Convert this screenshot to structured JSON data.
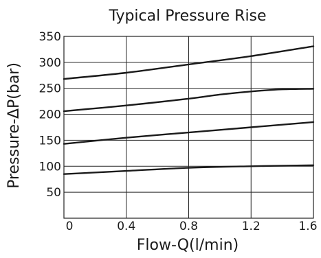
{
  "chart_data": {
    "type": "line",
    "title": "Typical Pressure Rise",
    "xlabel": "Flow-Q(l/min)",
    "ylabel": "Pressure-ΔP(bar)",
    "xlim": [
      0,
      1.6
    ],
    "ylim": [
      0,
      350
    ],
    "x_ticks": [
      0,
      0.4,
      0.8,
      1.2,
      1.6
    ],
    "x_tick_labels": [
      "0",
      "0.4",
      "0.8",
      "1.2",
      "1.6"
    ],
    "y_ticks": [
      50,
      100,
      150,
      200,
      250,
      300,
      350
    ],
    "y_tick_labels": [
      "50",
      "100",
      "150",
      "200",
      "250",
      "300",
      "350"
    ],
    "grid": true,
    "line_color": "#1a1a1a",
    "series": [
      {
        "x": [
          0,
          0.4,
          0.8,
          1.2,
          1.6
        ],
        "y": [
          268,
          280,
          296,
          312,
          331
        ]
      },
      {
        "x": [
          0,
          0.4,
          0.8,
          1.0,
          1.2,
          1.4,
          1.6
        ],
        "y": [
          206,
          217,
          230,
          238,
          244,
          248,
          249
        ]
      },
      {
        "x": [
          0,
          0.4,
          0.8,
          1.2,
          1.6
        ],
        "y": [
          143,
          155,
          165,
          175,
          185
        ]
      },
      {
        "x": [
          0,
          0.4,
          0.8,
          1.2,
          1.6
        ],
        "y": [
          85,
          91,
          97,
          100,
          102
        ]
      }
    ]
  }
}
